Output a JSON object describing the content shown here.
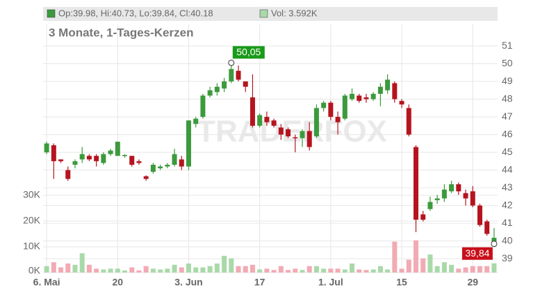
{
  "chart_data": {
    "type": "candlestick",
    "header": {
      "ohlc": "Op:39.98, Hi:40.73, Lo:39.84, Cl:40.18",
      "volume": "Vol: 3.592K"
    },
    "title": "3 Monate, 1-Tages-Kerzen",
    "watermark": "TRADERFOX",
    "categories": [
      "6. Mai",
      null,
      null,
      null,
      null,
      null,
      null,
      null,
      null,
      null,
      "20",
      null,
      null,
      null,
      null,
      null,
      null,
      null,
      null,
      null,
      "3. Jun",
      null,
      null,
      null,
      null,
      null,
      null,
      null,
      null,
      null,
      "17",
      null,
      null,
      null,
      null,
      null,
      null,
      null,
      null,
      null,
      "1. Jul",
      null,
      null,
      null,
      null,
      null,
      null,
      null,
      null,
      null,
      "15",
      null,
      null,
      null,
      null,
      null,
      null,
      null,
      null,
      null,
      "29",
      null,
      null,
      null
    ],
    "open": [
      45.0,
      45.4,
      44.6,
      44.0,
      44.3,
      44.6,
      44.8,
      44.8,
      44.4,
      44.9,
      44.8,
      44.8,
      44.8,
      44.5,
      43.65,
      43.9,
      44.1,
      44.2,
      44.3,
      44.6,
      44.2,
      46.6,
      47.0,
      48.2,
      48.4,
      48.6,
      49.0,
      49.6,
      49.0,
      48.1,
      46.5,
      47.0,
      46.8,
      46.4,
      46.3,
      45.85,
      45.8,
      46.2,
      45.9,
      47.5,
      47.8,
      47.0,
      46.9,
      48.0,
      48.2,
      48.1,
      48.0,
      48.3,
      48.5,
      48.9,
      47.9,
      47.5,
      45.3,
      41.5,
      41.8,
      42.3,
      42.4,
      42.8,
      43.2,
      42.7,
      42.8,
      42.0,
      41.1,
      39.98
    ],
    "high": [
      45.6,
      45.5,
      44.6,
      44.2,
      44.6,
      45.3,
      44.9,
      44.9,
      45.0,
      45.2,
      45.6,
      44.9,
      44.8,
      44.6,
      43.7,
      44.4,
      44.3,
      44.4,
      45.2,
      44.8,
      46.8,
      47.0,
      48.3,
      48.7,
      48.9,
      49.2,
      50.05,
      49.9,
      49.0,
      49.4,
      47.2,
      47.3,
      46.9,
      46.6,
      46.4,
      46.0,
      46.3,
      46.7,
      47.7,
      47.9,
      47.9,
      47.3,
      48.3,
      48.6,
      48.3,
      48.3,
      48.4,
      48.9,
      49.4,
      49.0,
      48.0,
      47.7,
      45.4,
      41.7,
      42.5,
      42.6,
      43.2,
      43.4,
      43.3,
      42.9,
      43.1,
      42.1,
      41.2,
      40.73
    ],
    "low": [
      44.9,
      43.5,
      44.4,
      43.4,
      44.1,
      44.4,
      44.5,
      44.2,
      44.3,
      44.8,
      44.8,
      44.7,
      44.2,
      44.3,
      43.4,
      43.8,
      44.0,
      44.1,
      44.2,
      44.0,
      44.0,
      46.4,
      46.9,
      48.1,
      48.2,
      48.4,
      48.9,
      49.0,
      48.4,
      46.4,
      46.4,
      46.5,
      46.4,
      45.7,
      45.8,
      45.0,
      45.3,
      45.1,
      45.8,
      47.3,
      46.8,
      46.0,
      46.8,
      47.9,
      47.8,
      47.8,
      47.9,
      47.6,
      48.3,
      47.8,
      47.5,
      45.9,
      40.5,
      41.1,
      41.7,
      42.1,
      42.2,
      42.7,
      42.6,
      42.0,
      41.9,
      40.8,
      40.3,
      39.84
    ],
    "close": [
      45.5,
      44.5,
      44.5,
      43.5,
      44.5,
      44.9,
      44.6,
      44.5,
      44.9,
      45.1,
      45.6,
      44.85,
      44.3,
      44.4,
      43.5,
      44.3,
      44.2,
      44.3,
      44.9,
      44.2,
      46.8,
      46.9,
      48.2,
      48.5,
      48.7,
      49.0,
      49.7,
      49.1,
      48.7,
      46.5,
      47.1,
      46.7,
      46.5,
      46.0,
      45.9,
      45.8,
      46.2,
      45.3,
      47.5,
      47.8,
      47.0,
      46.7,
      48.2,
      48.3,
      47.9,
      48.0,
      48.3,
      48.7,
      49.1,
      48.0,
      47.7,
      46.0,
      41.2,
      41.2,
      42.2,
      42.4,
      42.9,
      43.2,
      42.8,
      42.4,
      42.0,
      40.9,
      40.4,
      40.18
    ],
    "volume": [
      2.5,
      4,
      2,
      3.5,
      3,
      7.5,
      3,
      1.5,
      1.2,
      1.5,
      1.5,
      0.8,
      2,
      0.8,
      2.5,
      1.5,
      1.2,
      1.5,
      3,
      2,
      3.5,
      2,
      2,
      2.5,
      3.5,
      6.5,
      5.5,
      2.5,
      2.5,
      3,
      1.2,
      1.5,
      1,
      2.5,
      1,
      1.5,
      1,
      2.5,
      2.5,
      1.5,
      1.5,
      1.5,
      1.2,
      3.5,
      1.2,
      1,
      1.2,
      2.5,
      1.2,
      12,
      1.5,
      5,
      12.5,
      5.5,
      7,
      2.5,
      4,
      3,
      1.5,
      2,
      2.5,
      2.5,
      2.5,
      3.592
    ],
    "up_color": "#3c9a3c",
    "down_color": "#b5141e",
    "volume_up_color": "#a9d9a9",
    "volume_down_color": "#f2aab3",
    "ylim": [
      38.22,
      52.22
    ],
    "yticks": [
      39,
      40,
      41,
      42,
      43,
      44,
      45,
      46,
      47,
      48,
      49,
      50,
      51
    ],
    "y2lim": [
      0,
      96.5
    ],
    "y2ticks": [
      {
        "value": 0,
        "label": "0K"
      },
      {
        "value": 10,
        "label": "10K"
      },
      {
        "value": 20,
        "label": "20K"
      },
      {
        "value": 30,
        "label": "30K"
      }
    ],
    "max_label": {
      "value": 50.05,
      "label": "50,05"
    },
    "min_label": {
      "value": 39.84,
      "label": "39,84"
    },
    "grid": true
  }
}
